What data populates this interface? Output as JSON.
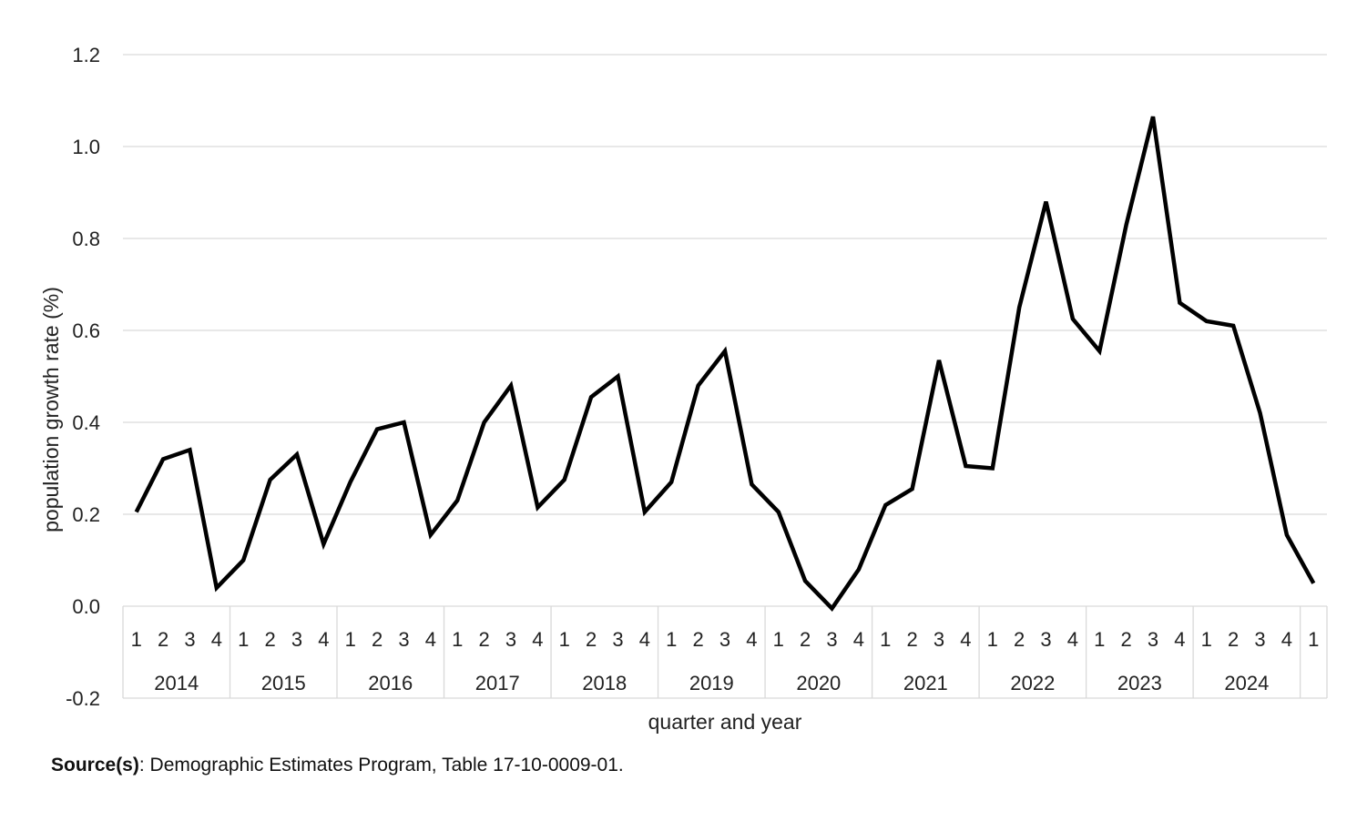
{
  "chart_data": {
    "type": "line",
    "title": "",
    "xlabel": "quarter and year",
    "ylabel": "population growth rate (%)",
    "ylim": [
      -0.2,
      1.2
    ],
    "yticks": [
      "-0.2",
      "0.0",
      "0.2",
      "0.4",
      "0.6",
      "0.8",
      "1.0",
      "1.2"
    ],
    "grid": true,
    "legend": "none",
    "line_color": "#000000",
    "years": [
      {
        "label": "2014",
        "quarters": [
          "1",
          "2",
          "3",
          "4"
        ]
      },
      {
        "label": "2015",
        "quarters": [
          "1",
          "2",
          "3",
          "4"
        ]
      },
      {
        "label": "2016",
        "quarters": [
          "1",
          "2",
          "3",
          "4"
        ]
      },
      {
        "label": "2017",
        "quarters": [
          "1",
          "2",
          "3",
          "4"
        ]
      },
      {
        "label": "2018",
        "quarters": [
          "1",
          "2",
          "3",
          "4"
        ]
      },
      {
        "label": "2019",
        "quarters": [
          "1",
          "2",
          "3",
          "4"
        ]
      },
      {
        "label": "2020",
        "quarters": [
          "1",
          "2",
          "3",
          "4"
        ]
      },
      {
        "label": "2021",
        "quarters": [
          "1",
          "2",
          "3",
          "4"
        ]
      },
      {
        "label": "2022",
        "quarters": [
          "1",
          "2",
          "3",
          "4"
        ]
      },
      {
        "label": "2023",
        "quarters": [
          "1",
          "2",
          "3",
          "4"
        ]
      },
      {
        "label": "2024",
        "quarters": [
          "1",
          "2",
          "3",
          "4"
        ]
      },
      {
        "label": "",
        "quarters": [
          "1"
        ]
      }
    ],
    "series": [
      {
        "values": [
          0.205,
          0.32,
          0.34,
          0.04,
          0.1,
          0.275,
          0.33,
          0.135,
          0.27,
          0.385,
          0.4,
          0.155,
          0.23,
          0.4,
          0.48,
          0.215,
          0.275,
          0.455,
          0.5,
          0.205,
          0.27,
          0.48,
          0.555,
          0.265,
          0.205,
          0.055,
          -0.005,
          0.08,
          0.22,
          0.255,
          0.535,
          0.305,
          0.3,
          0.65,
          0.88,
          0.625,
          0.555,
          0.83,
          1.065,
          0.66,
          0.62,
          0.61,
          0.42,
          0.155,
          0.05
        ]
      }
    ]
  },
  "source": {
    "label": "Source(s)",
    "text": ": Demographic Estimates Program, Table 17-10-0009-01."
  }
}
